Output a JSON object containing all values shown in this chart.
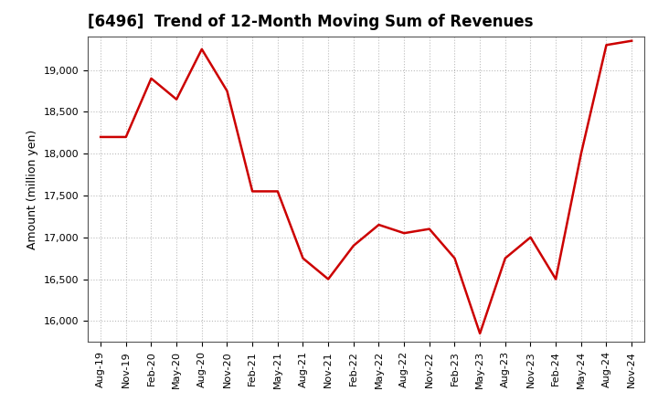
{
  "title": "[6496]  Trend of 12-Month Moving Sum of Revenues",
  "ylabel": "Amount (million yen)",
  "line_color": "#cc0000",
  "background_color": "#ffffff",
  "plot_bg_color": "#ffffff",
  "grid_color": "#aaaaaa",
  "ylim": [
    15750,
    19400
  ],
  "yticks": [
    16000,
    16500,
    17000,
    17500,
    18000,
    18500,
    19000
  ],
  "x_labels": [
    "Aug-19",
    "Nov-19",
    "Feb-20",
    "May-20",
    "Aug-20",
    "Nov-20",
    "Feb-21",
    "May-21",
    "Aug-21",
    "Nov-21",
    "Feb-22",
    "May-22",
    "Aug-22",
    "Nov-22",
    "Feb-23",
    "May-23",
    "Aug-23",
    "Nov-23",
    "Feb-24",
    "May-24",
    "Aug-24",
    "Nov-24"
  ],
  "values": [
    18200,
    18200,
    18900,
    18650,
    19250,
    18750,
    17550,
    17550,
    16750,
    16500,
    16900,
    17150,
    17050,
    17100,
    16750,
    15850,
    16750,
    17000,
    16500,
    18000,
    19300,
    19350
  ]
}
